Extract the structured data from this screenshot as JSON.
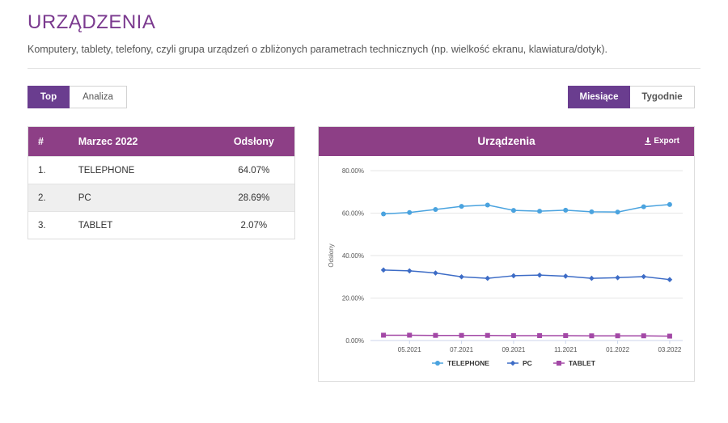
{
  "header": {
    "title": "URZĄDZENIA",
    "subtitle": "Komputery, tablety, telefony, czyli grupa urządzeń o zbliżonych parametrach technicznych (np. wielkość ekranu, klawiatura/dotyk)."
  },
  "view_tabs": {
    "top": "Top",
    "analiza": "Analiza",
    "active": "Top"
  },
  "period_tabs": {
    "miesiace": "Miesiące",
    "tygodnie": "Tygodnie",
    "active": "Miesiące"
  },
  "table": {
    "headers": [
      "#",
      "Marzec 2022",
      "Odsłony"
    ],
    "rows": [
      {
        "rank": "1.",
        "name": "TELEPHONE",
        "value": "64.07%"
      },
      {
        "rank": "2.",
        "name": "PC",
        "value": "28.69%"
      },
      {
        "rank": "3.",
        "name": "TABLET",
        "value": "2.07%"
      }
    ]
  },
  "chart_panel": {
    "title": "Urządzenia",
    "export_label": "Export",
    "export_icon": "download-icon"
  },
  "chart_data": {
    "type": "line",
    "title": "Urządzenia",
    "xlabel": "",
    "ylabel": "Odsłony",
    "ylim": [
      0,
      80
    ],
    "y_ticks": [
      "0.00%",
      "20.00%",
      "40.00%",
      "60.00%",
      "80.00%"
    ],
    "x": [
      "04.2021",
      "05.2021",
      "06.2021",
      "07.2021",
      "08.2021",
      "09.2021",
      "10.2021",
      "11.2021",
      "12.2021",
      "01.2022",
      "02.2022",
      "03.2022"
    ],
    "x_tick_labels": [
      "05.2021",
      "07.2021",
      "09.2021",
      "11.2021",
      "01.2022",
      "03.2022"
    ],
    "legend_position": "bottom",
    "grid": true,
    "series": [
      {
        "name": "TELEPHONE",
        "color": "#4aa3df",
        "marker": "circle",
        "values": [
          59.6,
          60.3,
          61.7,
          63.2,
          63.8,
          61.3,
          60.9,
          61.4,
          60.6,
          60.5,
          63.0,
          64.07
        ]
      },
      {
        "name": "PC",
        "color": "#3d6cc6",
        "marker": "diamond",
        "values": [
          33.2,
          32.8,
          31.8,
          30.0,
          29.3,
          30.5,
          30.8,
          30.3,
          29.3,
          29.6,
          30.1,
          28.69
        ]
      },
      {
        "name": "TABLET",
        "color": "#a348a6",
        "marker": "square",
        "values": [
          2.5,
          2.5,
          2.4,
          2.4,
          2.4,
          2.3,
          2.3,
          2.3,
          2.2,
          2.2,
          2.2,
          2.07
        ]
      }
    ]
  }
}
